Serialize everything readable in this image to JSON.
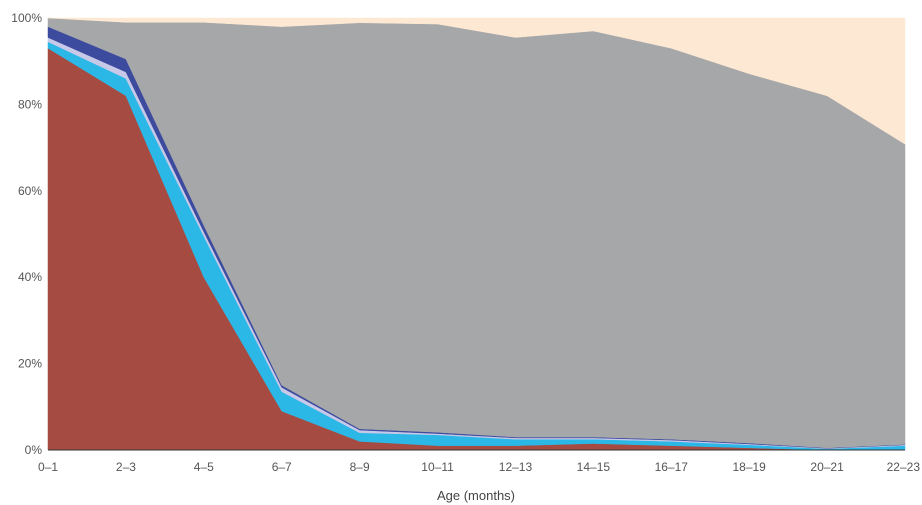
{
  "chart_data": {
    "type": "area",
    "stacked": true,
    "normalized_percent": true,
    "categories": [
      "0–1",
      "2–3",
      "4–5",
      "6–7",
      "8–9",
      "10–11",
      "12–13",
      "14–15",
      "16–17",
      "18–19",
      "20–21",
      "22–23"
    ],
    "series": [
      {
        "color": "#a54b42",
        "values": [
          93,
          82,
          40,
          9,
          2,
          1,
          1,
          1.5,
          1,
          0.5,
          0,
          0
        ]
      },
      {
        "color": "#2bb8e6",
        "values": [
          1.5,
          4,
          9.5,
          4.5,
          2,
          2.5,
          1.5,
          1,
          1,
          0.7,
          0.3,
          1
        ]
      },
      {
        "color": "#c8c8e8",
        "values": [
          1,
          1.5,
          1,
          1,
          0.6,
          0.3,
          0.3,
          0.3,
          0.3,
          0.2,
          0.1,
          0.2
        ]
      },
      {
        "color": "#3d4b9f",
        "values": [
          2.5,
          3,
          1.5,
          0.5,
          0.3,
          0.3,
          0.2,
          0.2,
          0.2,
          0.2,
          0.1,
          0.1
        ]
      },
      {
        "color": "#a6a7a9",
        "values": [
          2,
          8.5,
          47,
          83,
          94,
          94.5,
          92.5,
          94,
          90.5,
          85.5,
          81.5,
          69.5
        ]
      },
      {
        "color": "#fde9d3",
        "values": [
          0,
          1,
          1,
          2,
          1.1,
          1.4,
          4.5,
          3,
          7,
          12.9,
          18,
          29.2
        ]
      }
    ],
    "ylim": [
      0,
      100
    ],
    "ytick_labels": [
      "0%",
      "20%",
      "40%",
      "60%",
      "80%",
      "100%"
    ],
    "xlabel": "Age (months)",
    "ylabel": ""
  }
}
